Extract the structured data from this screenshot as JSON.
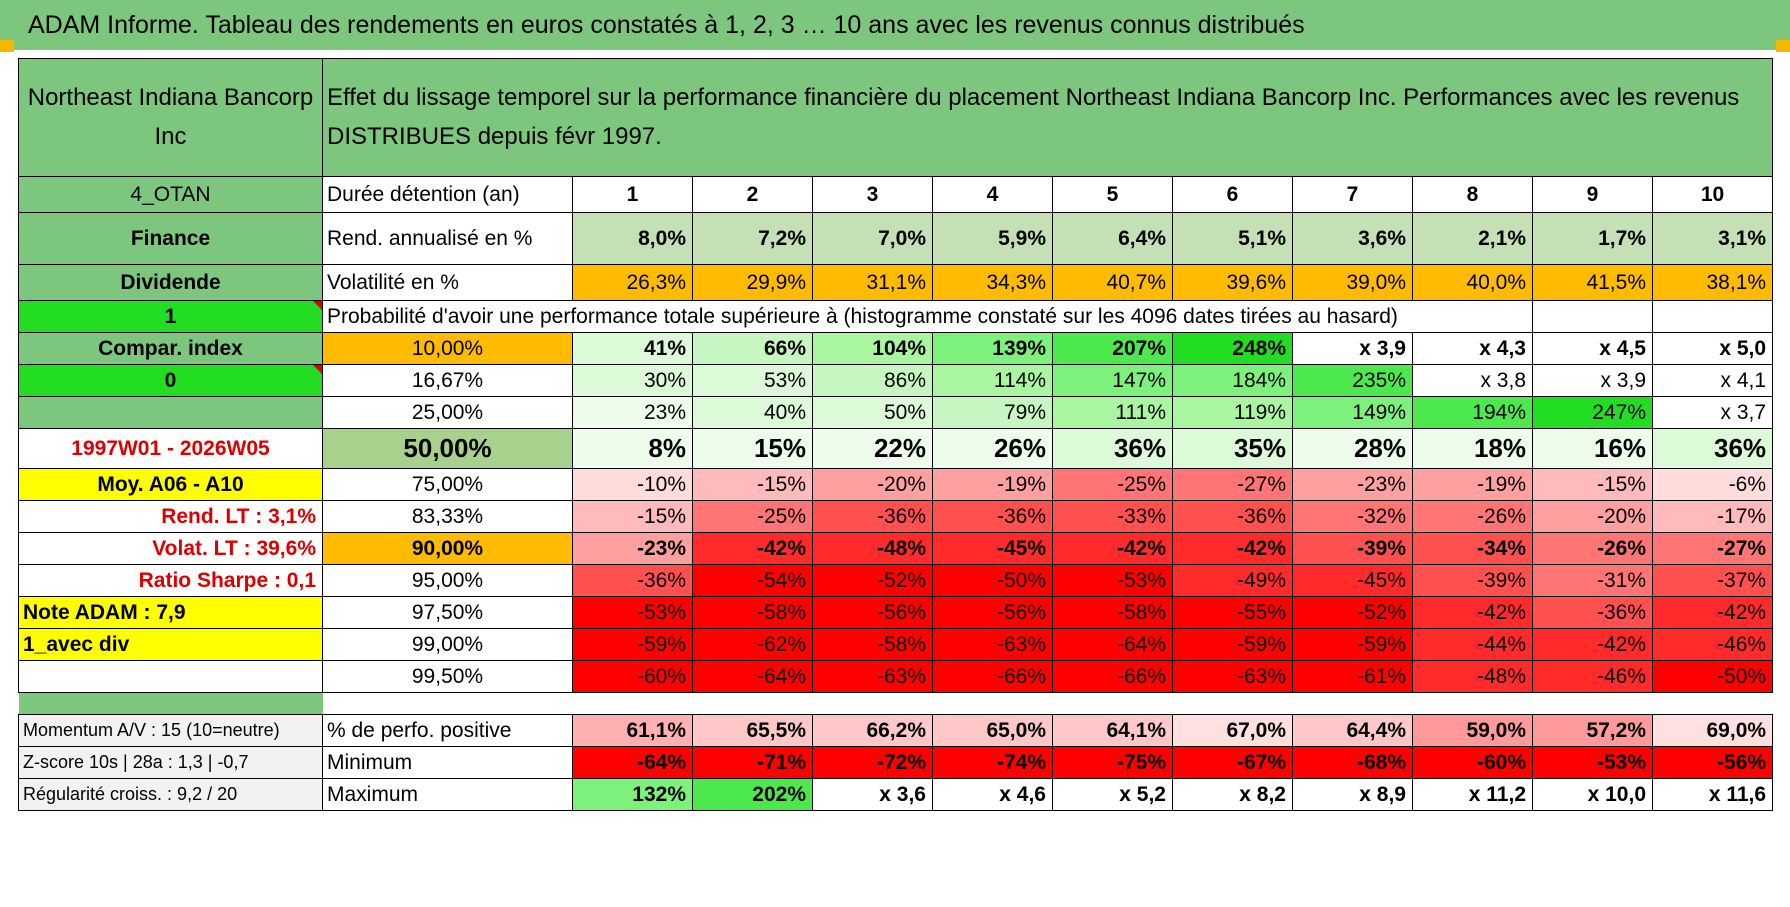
{
  "title": "ADAM Informe. Tableau des rendements en euros constatés à 1, 2, 3 … 10 ans avec les revenus connus distribués",
  "header": {
    "name": "Northeast Indiana Bancorp Inc",
    "description": "Effet du lissage temporel sur la performance financière du placement Northeast Indiana Bancorp Inc. Performances avec les revenus DISTRIBUES depuis févr 1997."
  },
  "rows": {
    "duration": {
      "left": "4_OTAN",
      "label": "Durée détention (an)",
      "values": [
        "1",
        "2",
        "3",
        "4",
        "5",
        "6",
        "7",
        "8",
        "9",
        "10"
      ]
    },
    "rend": {
      "left": "Finance",
      "label": "Rend. annualisé en %",
      "values": [
        "8,0%",
        "7,2%",
        "7,0%",
        "5,9%",
        "6,4%",
        "5,1%",
        "3,6%",
        "2,1%",
        "1,7%",
        "3,1%"
      ]
    },
    "vol": {
      "left": "Dividende",
      "label": "Volatilité en %",
      "values": [
        "26,3%",
        "29,9%",
        "31,1%",
        "34,3%",
        "40,7%",
        "39,6%",
        "39,0%",
        "40,0%",
        "41,5%",
        "38,1%"
      ]
    },
    "prob": {
      "left": "1",
      "label": "Probabilité d'avoir une performance totale supérieure à (histogramme constaté sur les 4096 dates tirées au hasard)"
    }
  },
  "quantiles": [
    {
      "left": "Compar. index",
      "q": "10,00%",
      "values": [
        "41%",
        "66%",
        "104%",
        "139%",
        "207%",
        "248%",
        "x 3,9",
        "x 4,3",
        "x 4,5",
        "x 5,0"
      ]
    },
    {
      "left": "0",
      "q": "16,67%",
      "values": [
        "30%",
        "53%",
        "86%",
        "114%",
        "147%",
        "184%",
        "235%",
        "x 3,8",
        "x 3,9",
        "x 4,1"
      ]
    },
    {
      "left": "",
      "q": "25,00%",
      "values": [
        "23%",
        "40%",
        "50%",
        "79%",
        "111%",
        "119%",
        "149%",
        "194%",
        "247%",
        "x 3,7"
      ]
    },
    {
      "left": "1997W01 - 2026W05",
      "q": "50,00%",
      "values": [
        "8%",
        "15%",
        "22%",
        "26%",
        "36%",
        "35%",
        "28%",
        "18%",
        "16%",
        "36%"
      ]
    },
    {
      "left": "Moy. A06 - A10",
      "q": "75,00%",
      "values": [
        "-10%",
        "-15%",
        "-20%",
        "-19%",
        "-25%",
        "-27%",
        "-23%",
        "-19%",
        "-15%",
        "-6%"
      ]
    },
    {
      "left": "Rend. LT :   3,1%",
      "q": "83,33%",
      "values": [
        "-15%",
        "-25%",
        "-36%",
        "-36%",
        "-33%",
        "-36%",
        "-32%",
        "-26%",
        "-20%",
        "-17%"
      ]
    },
    {
      "left": "Volat. LT :   39,6%",
      "q": "90,00%",
      "values": [
        "-23%",
        "-42%",
        "-48%",
        "-45%",
        "-42%",
        "-42%",
        "-39%",
        "-34%",
        "-26%",
        "-27%"
      ]
    },
    {
      "left": "Ratio Sharpe :    0,1",
      "q": "95,00%",
      "values": [
        "-36%",
        "-54%",
        "-52%",
        "-50%",
        "-53%",
        "-49%",
        "-45%",
        "-39%",
        "-31%",
        "-37%"
      ]
    },
    {
      "left": "Note ADAM : 7,9",
      "q": "97,50%",
      "values": [
        "-53%",
        "-58%",
        "-56%",
        "-56%",
        "-58%",
        "-55%",
        "-52%",
        "-42%",
        "-36%",
        "-42%"
      ]
    },
    {
      "left": "1_avec div",
      "q": "99,00%",
      "values": [
        "-59%",
        "-62%",
        "-58%",
        "-63%",
        "-64%",
        "-59%",
        "-59%",
        "-44%",
        "-42%",
        "-46%"
      ]
    },
    {
      "left": "",
      "q": "99,50%",
      "values": [
        "-60%",
        "-64%",
        "-63%",
        "-66%",
        "-66%",
        "-63%",
        "-61%",
        "-48%",
        "-46%",
        "-50%"
      ]
    }
  ],
  "stats": [
    {
      "left": "Momentum A/V : 15 (10=neutre)",
      "label": "% de perfo. positive",
      "values": [
        "61,1%",
        "65,5%",
        "66,2%",
        "65,0%",
        "64,1%",
        "67,0%",
        "64,4%",
        "59,0%",
        "57,2%",
        "69,0%"
      ]
    },
    {
      "left": "Z-score 10s | 28a : 1,3 | -0,7",
      "label": "Minimum",
      "values": [
        "-64%",
        "-71%",
        "-72%",
        "-74%",
        "-75%",
        "-67%",
        "-68%",
        "-60%",
        "-53%",
        "-56%"
      ]
    },
    {
      "left": "Régularité croiss. : 9,2 / 20",
      "label": "Maximum",
      "values": [
        "132%",
        "202%",
        "x 3,6",
        "x 4,6",
        "x 5,2",
        "x 8,2",
        "x 8,9",
        "x 11,2",
        "x 10,0",
        "x 11,6"
      ]
    }
  ]
}
